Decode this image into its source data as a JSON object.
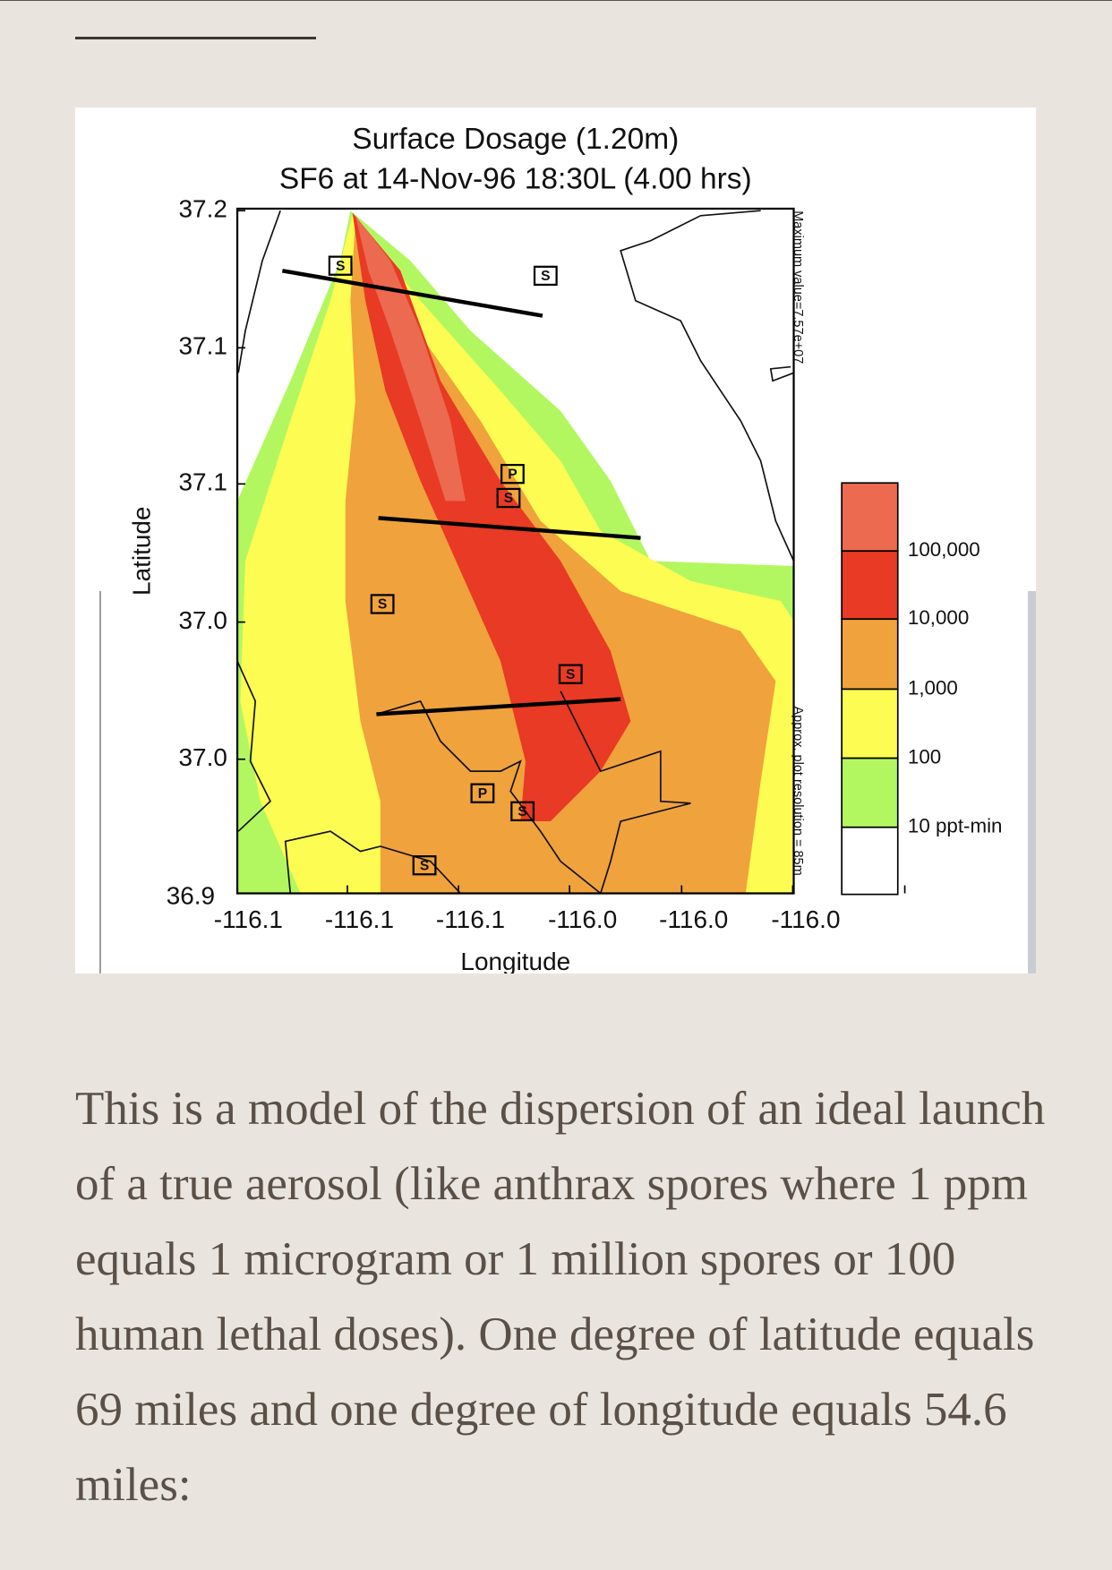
{
  "figure": {
    "title": [
      "Surface Dosage (1.20m)",
      "SF6 at 14-Nov-96 18:30L (4.00 hrs)"
    ],
    "y_axis_label": "Latitude",
    "x_axis_label": "Longitude",
    "y_ticks": [
      "37.2",
      "37.1",
      "37.1",
      "37.0",
      "37.0",
      "36.9"
    ],
    "x_ticks": [
      "-116.1",
      "-116.1",
      "-116.1",
      "-116.0",
      "-116.0",
      "-116.0"
    ],
    "side_notes": [
      "Maximum value=7.57e+07",
      "Approx. plot resolution = 85m"
    ],
    "legend": {
      "colors": [
        "#ec6a50",
        "#e83a24",
        "#f0a23c",
        "#fdfc52",
        "#b3f760",
        "#ffffff"
      ],
      "labels": [
        "100,000",
        "10,000",
        "1,000",
        "100",
        "10 ppt-min"
      ]
    },
    "markers": [
      "S",
      "S",
      "P",
      "S",
      "S",
      "S",
      "P",
      "S",
      "S"
    ]
  },
  "paragraph": "This is a model of the dispersion of an ideal launch of a true aerosol (like anthrax spores where 1 ppm equals 1 microgram or 1 million spores or 100 human lethal doses). One degree of latitude equals 69 miles and one degree of longitude equals 54.6 miles:"
}
